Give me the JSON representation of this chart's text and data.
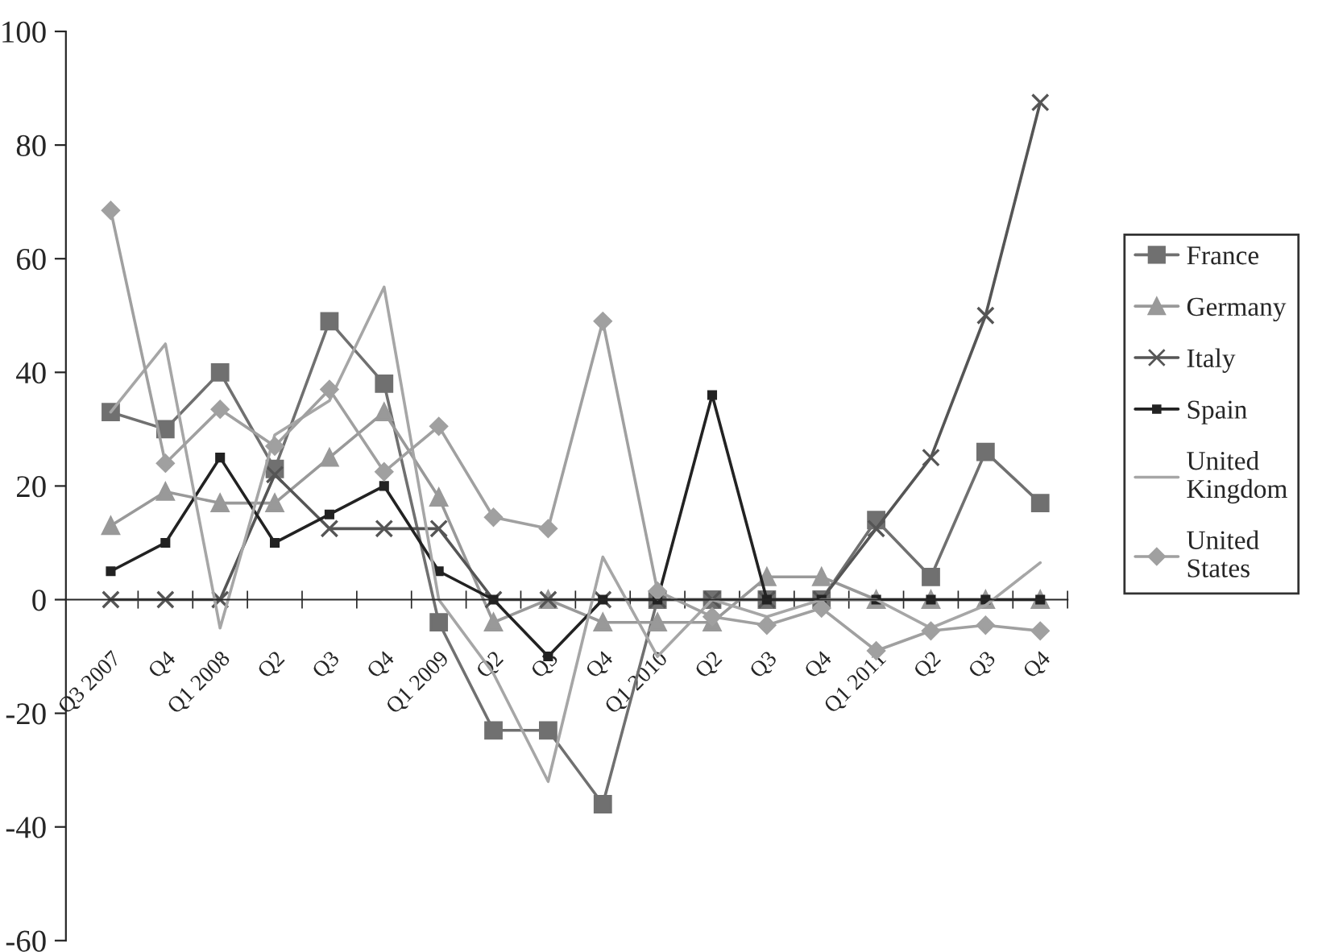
{
  "chart_data": {
    "type": "line",
    "categories": [
      "Q3 2007",
      "Q4",
      "Q1 2008",
      "Q2",
      "Q3",
      "Q4",
      "Q1 2009",
      "Q2",
      "Q3",
      "Q4",
      "Q1 2010",
      "Q2",
      "Q3",
      "Q4",
      "Q1 2011",
      "Q2",
      "Q3",
      "Q4"
    ],
    "series": [
      {
        "name": "France",
        "color": "#707070",
        "marker": "square",
        "values": [
          33,
          30,
          40,
          23,
          49,
          38,
          -4,
          -23,
          -23,
          -36,
          0,
          0,
          0,
          0,
          14,
          4,
          26,
          17
        ]
      },
      {
        "name": "Germany",
        "color": "#999999",
        "marker": "triangle",
        "values": [
          13,
          19,
          17,
          17,
          25,
          33,
          18,
          -4,
          0,
          -4,
          -4,
          -4,
          4,
          4,
          0,
          0,
          0,
          0
        ]
      },
      {
        "name": "Italy",
        "color": "#555555",
        "marker": "cross",
        "values": [
          0,
          0,
          0,
          22,
          12.5,
          12.5,
          12.5,
          0,
          0,
          0,
          0,
          0,
          0,
          0,
          12.5,
          25,
          50,
          87.5
        ]
      },
      {
        "name": "Spain",
        "color": "#222222",
        "marker": "square",
        "values": [
          5,
          10,
          25,
          10,
          15,
          20,
          5,
          0,
          -10,
          0,
          0,
          36,
          0,
          0,
          0,
          0,
          0,
          0
        ]
      },
      {
        "name": "United\nKingdom",
        "color": "#a6a6a6",
        "marker": "none",
        "values": [
          33,
          45,
          -5,
          29,
          35,
          55,
          0,
          -13,
          -32,
          7.5,
          -10,
          0,
          -3,
          0,
          0,
          -5,
          -1,
          6.5
        ]
      },
      {
        "name": "United\nStates",
        "color": "#a0a0a0",
        "marker": "diamond",
        "values": [
          68.5,
          24,
          33.5,
          27,
          37,
          22.5,
          30.5,
          14.5,
          12.5,
          49,
          1.5,
          -3,
          -4.5,
          -1.5,
          -9,
          -5.5,
          -4.5,
          -5.5
        ]
      }
    ],
    "ylim": [
      -60,
      100
    ],
    "yticks": [
      -60,
      -40,
      -20,
      0,
      20,
      40,
      60,
      80,
      100
    ],
    "grid": false,
    "legend": "right",
    "line_style": "solid"
  }
}
